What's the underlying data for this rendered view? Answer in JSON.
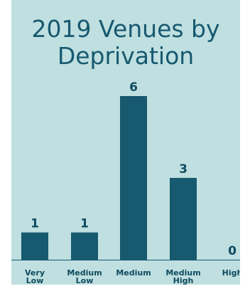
{
  "chart_data": {
    "type": "bar",
    "title_lines": [
      "2019 Venues by",
      "Deprivation"
    ],
    "categories": [
      {
        "lines": [
          "Very",
          "Low"
        ]
      },
      {
        "lines": [
          "Medium",
          "Low"
        ]
      },
      {
        "lines": [
          "Medium"
        ]
      },
      {
        "lines": [
          "Medium",
          "High"
        ]
      },
      {
        "lines": [
          "High"
        ]
      }
    ],
    "values": [
      1,
      1,
      6,
      3,
      0
    ],
    "data_labels": [
      "1",
      "1",
      "6",
      "3",
      "0"
    ],
    "ylim": [
      0,
      6
    ],
    "grid": false,
    "legend": "none"
  },
  "colors": {
    "background": "#bfdfe0",
    "bar": "#17596f",
    "text": "#17596f",
    "label": "#0f4a5e"
  }
}
